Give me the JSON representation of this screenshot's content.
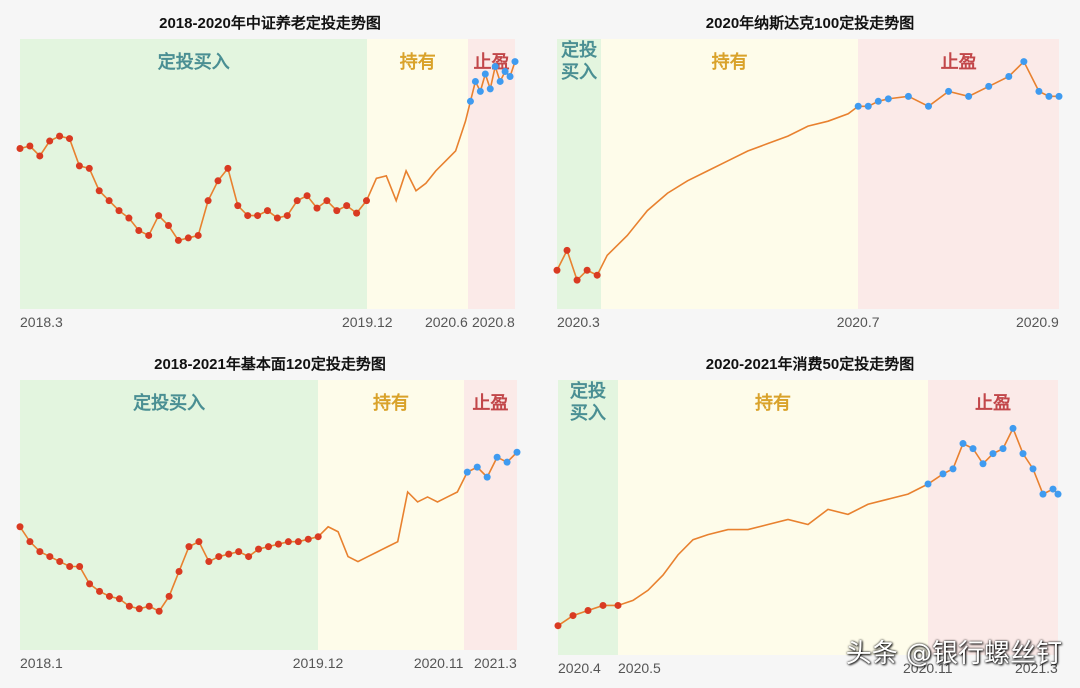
{
  "colors": {
    "buy_band": "#e3f5df",
    "hold_band": "#fefcea",
    "sell_band": "#fbeae8",
    "buy_label": "#4a8f93",
    "hold_label": "#d9a22a",
    "sell_label": "#c2474a",
    "line": "#e8812f",
    "buy_dot": "#d93a22",
    "sell_dot": "#3f9bf0"
  },
  "watermark": "头条 @银行螺丝钉",
  "panels": [
    {
      "title": "2018-2020年中证养老定投走势图",
      "bands": [
        {
          "type": "buy",
          "label": "定投买入",
          "from": 0,
          "to": 0.702
        },
        {
          "type": "hold",
          "label": "持有",
          "from": 0.702,
          "to": 0.905
        },
        {
          "type": "sell",
          "label": "止盈",
          "from": 0.905,
          "to": 1
        }
      ],
      "ticks": [
        {
          "label": "2018.3",
          "pos": 0,
          "align": "left"
        },
        {
          "label": "2019.12",
          "pos": 0.702,
          "align": "center"
        },
        {
          "label": "2020.6",
          "pos": 0.905,
          "align": "right"
        },
        {
          "label": "2020.8",
          "pos": 1,
          "align": "right"
        }
      ]
    },
    {
      "title": "2020年纳斯达克100定投走势图",
      "bands": [
        {
          "type": "buy",
          "label": "定投\n买入",
          "from": 0,
          "to": 0.088
        },
        {
          "type": "hold",
          "label": "持有",
          "from": 0.088,
          "to": 0.6
        },
        {
          "type": "sell",
          "label": "止盈",
          "from": 0.6,
          "to": 1
        }
      ],
      "ticks": [
        {
          "label": "2020.3",
          "pos": 0,
          "align": "left"
        },
        {
          "label": "2020.7",
          "pos": 0.6,
          "align": "center"
        },
        {
          "label": "2020.9",
          "pos": 1,
          "align": "right"
        }
      ]
    },
    {
      "title": "2018-2021年基本面120定投走势图",
      "bands": [
        {
          "type": "buy",
          "label": "定投买入",
          "from": 0,
          "to": 0.6
        },
        {
          "type": "hold",
          "label": "持有",
          "from": 0.6,
          "to": 0.893
        },
        {
          "type": "sell",
          "label": "止盈",
          "from": 0.893,
          "to": 1
        }
      ],
      "ticks": [
        {
          "label": "2018.1",
          "pos": 0,
          "align": "left"
        },
        {
          "label": "2019.12",
          "pos": 0.6,
          "align": "center"
        },
        {
          "label": "2020.11",
          "pos": 0.893,
          "align": "right"
        },
        {
          "label": "2021.3",
          "pos": 1,
          "align": "right"
        }
      ]
    },
    {
      "title": "2020-2021年消费50定投走势图",
      "bands": [
        {
          "type": "buy",
          "label": "定投\n买入",
          "from": 0,
          "to": 0.12
        },
        {
          "type": "hold",
          "label": "持有",
          "from": 0.12,
          "to": 0.74
        },
        {
          "type": "sell",
          "label": "止盈",
          "from": 0.74,
          "to": 1
        }
      ],
      "ticks": [
        {
          "label": "2020.4",
          "pos": 0,
          "align": "left"
        },
        {
          "label": "2020.5",
          "pos": 0.12,
          "align": "left"
        },
        {
          "label": "2020.11",
          "pos": 0.74,
          "align": "center"
        },
        {
          "label": "2021.3",
          "pos": 1,
          "align": "right"
        }
      ]
    }
  ],
  "chart_data": [
    {
      "type": "line",
      "title": "2018-2020年中证养老定投走势图",
      "xlabel": "",
      "ylabel": "",
      "x_ticks": [
        "2018.3",
        "2019.12",
        "2020.6",
        "2020.8"
      ],
      "phases": [
        "定投买入",
        "持有",
        "止盈"
      ],
      "grid": false,
      "x": [
        0,
        0.02,
        0.04,
        0.06,
        0.08,
        0.1,
        0.12,
        0.14,
        0.16,
        0.18,
        0.2,
        0.22,
        0.24,
        0.26,
        0.28,
        0.3,
        0.32,
        0.34,
        0.36,
        0.38,
        0.4,
        0.42,
        0.44,
        0.46,
        0.48,
        0.5,
        0.52,
        0.54,
        0.56,
        0.58,
        0.6,
        0.62,
        0.64,
        0.66,
        0.68,
        0.7,
        0.72,
        0.74,
        0.76,
        0.78,
        0.8,
        0.82,
        0.84,
        0.86,
        0.88,
        0.9,
        0.91,
        0.92,
        0.93,
        0.94,
        0.95,
        0.96,
        0.97,
        0.98,
        0.99,
        1
      ],
      "y": [
        0.63,
        0.64,
        0.6,
        0.66,
        0.68,
        0.67,
        0.56,
        0.55,
        0.46,
        0.42,
        0.38,
        0.35,
        0.3,
        0.28,
        0.36,
        0.32,
        0.26,
        0.27,
        0.28,
        0.42,
        0.5,
        0.55,
        0.4,
        0.36,
        0.36,
        0.38,
        0.35,
        0.36,
        0.42,
        0.44,
        0.39,
        0.42,
        0.38,
        0.4,
        0.37,
        0.42,
        0.51,
        0.52,
        0.42,
        0.54,
        0.46,
        0.49,
        0.54,
        0.58,
        0.62,
        0.74,
        0.82,
        0.9,
        0.86,
        0.93,
        0.87,
        0.96,
        0.9,
        0.94,
        0.92,
        0.98
      ],
      "buy_points_x_range": [
        0,
        0.7
      ],
      "sell_points_x_range": [
        0.905,
        1
      ]
    },
    {
      "type": "line",
      "title": "2020年纳斯达克100定投走势图",
      "xlabel": "",
      "ylabel": "",
      "x_ticks": [
        "2020.3",
        "2020.7",
        "2020.9"
      ],
      "phases": [
        "定投买入",
        "持有",
        "止盈"
      ],
      "grid": false,
      "x": [
        0,
        0.02,
        0.04,
        0.06,
        0.08,
        0.1,
        0.14,
        0.18,
        0.22,
        0.26,
        0.3,
        0.34,
        0.38,
        0.42,
        0.46,
        0.5,
        0.54,
        0.58,
        0.6,
        0.62,
        0.64,
        0.66,
        0.7,
        0.74,
        0.78,
        0.82,
        0.86,
        0.9,
        0.93,
        0.96,
        0.98,
        1
      ],
      "y": [
        0.14,
        0.22,
        0.1,
        0.14,
        0.12,
        0.2,
        0.28,
        0.38,
        0.45,
        0.5,
        0.54,
        0.58,
        0.62,
        0.65,
        0.68,
        0.72,
        0.74,
        0.77,
        0.8,
        0.8,
        0.82,
        0.83,
        0.84,
        0.8,
        0.86,
        0.84,
        0.88,
        0.92,
        0.98,
        0.86,
        0.84,
        0.84
      ],
      "buy_points_x_range": [
        0,
        0.088
      ],
      "sell_points_x_range": [
        0.6,
        1
      ]
    },
    {
      "type": "line",
      "title": "2018-2021年基本面120定投走势图",
      "xlabel": "",
      "ylabel": "",
      "x_ticks": [
        "2018.1",
        "2019.12",
        "2020.11",
        "2021.3"
      ],
      "phases": [
        "定投买入",
        "持有",
        "止盈"
      ],
      "grid": false,
      "x": [
        0,
        0.02,
        0.04,
        0.06,
        0.08,
        0.1,
        0.12,
        0.14,
        0.16,
        0.18,
        0.2,
        0.22,
        0.24,
        0.26,
        0.28,
        0.3,
        0.32,
        0.34,
        0.36,
        0.38,
        0.4,
        0.42,
        0.44,
        0.46,
        0.48,
        0.5,
        0.52,
        0.54,
        0.56,
        0.58,
        0.6,
        0.62,
        0.64,
        0.66,
        0.68,
        0.7,
        0.72,
        0.74,
        0.76,
        0.78,
        0.8,
        0.82,
        0.84,
        0.86,
        0.88,
        0.9,
        0.92,
        0.94,
        0.96,
        0.98,
        1
      ],
      "y": [
        0.48,
        0.42,
        0.38,
        0.36,
        0.34,
        0.32,
        0.32,
        0.25,
        0.22,
        0.2,
        0.19,
        0.16,
        0.15,
        0.16,
        0.14,
        0.2,
        0.3,
        0.4,
        0.42,
        0.34,
        0.36,
        0.37,
        0.38,
        0.36,
        0.39,
        0.4,
        0.41,
        0.42,
        0.42,
        0.43,
        0.44,
        0.48,
        0.46,
        0.36,
        0.34,
        0.36,
        0.38,
        0.4,
        0.42,
        0.62,
        0.58,
        0.6,
        0.58,
        0.6,
        0.62,
        0.7,
        0.72,
        0.68,
        0.76,
        0.74,
        0.78
      ],
      "buy_points_x_range": [
        0,
        0.6
      ],
      "sell_points_x_range": [
        0.893,
        1
      ]
    },
    {
      "type": "line",
      "title": "2020-2021年消费50定投走势图",
      "xlabel": "",
      "ylabel": "",
      "x_ticks": [
        "2020.4",
        "2020.5",
        "2020.11",
        "2021.3"
      ],
      "phases": [
        "定投买入",
        "持有",
        "止盈"
      ],
      "grid": false,
      "x": [
        0,
        0.03,
        0.06,
        0.09,
        0.12,
        0.15,
        0.18,
        0.21,
        0.24,
        0.27,
        0.3,
        0.34,
        0.38,
        0.42,
        0.46,
        0.5,
        0.54,
        0.58,
        0.62,
        0.66,
        0.7,
        0.74,
        0.77,
        0.79,
        0.81,
        0.83,
        0.85,
        0.87,
        0.89,
        0.91,
        0.93,
        0.95,
        0.97,
        0.99,
        1
      ],
      "y": [
        0.1,
        0.14,
        0.16,
        0.18,
        0.18,
        0.2,
        0.24,
        0.3,
        0.38,
        0.44,
        0.46,
        0.48,
        0.48,
        0.5,
        0.52,
        0.5,
        0.56,
        0.54,
        0.58,
        0.6,
        0.62,
        0.66,
        0.7,
        0.72,
        0.82,
        0.8,
        0.74,
        0.78,
        0.8,
        0.88,
        0.78,
        0.72,
        0.62,
        0.64,
        0.62
      ],
      "buy_points_x_range": [
        0,
        0.12
      ],
      "sell_points_x_range": [
        0.74,
        1
      ]
    }
  ]
}
